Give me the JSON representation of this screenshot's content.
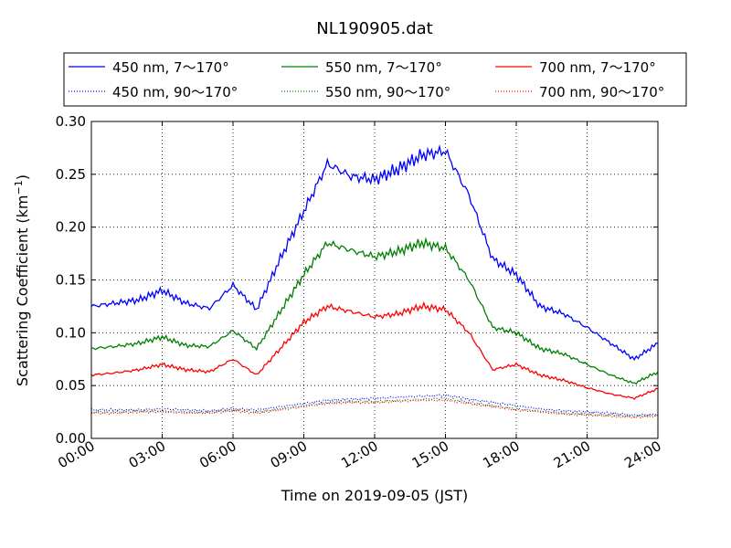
{
  "chart_data": {
    "type": "line",
    "title": "NL190905.dat",
    "xlabel": "Time on 2019-09-05 (JST)",
    "ylabel_main": "Scattering Coefficient (km",
    "ylabel_exp": "−1",
    "ylabel_close": ")",
    "xlim": [
      0,
      24
    ],
    "ylim": [
      0,
      0.3
    ],
    "grid": true,
    "legend_placement": "top, outside plot, 3 columns",
    "x_ticks": [
      0,
      3,
      6,
      9,
      12,
      15,
      18,
      21,
      24
    ],
    "x_tick_labels": [
      "00:00",
      "03:00",
      "06:00",
      "09:00",
      "12:00",
      "15:00",
      "18:00",
      "21:00",
      "24:00"
    ],
    "y_ticks": [
      0,
      0.05,
      0.1,
      0.15,
      0.2,
      0.25,
      0.3
    ],
    "y_tick_labels": [
      "0.00",
      "0.05",
      "0.10",
      "0.15",
      "0.20",
      "0.25",
      "0.30"
    ],
    "x_hours": [
      0,
      1,
      2,
      3,
      4,
      5,
      6,
      7,
      8,
      9,
      10,
      11,
      12,
      13,
      14,
      15,
      16,
      17,
      18,
      19,
      20,
      21,
      22,
      23,
      24
    ],
    "series": [
      {
        "name": "450 nm, 7～170°",
        "color": "#0000ff",
        "style": "solid",
        "values": [
          0.125,
          0.128,
          0.131,
          0.14,
          0.128,
          0.123,
          0.145,
          0.122,
          0.17,
          0.215,
          0.26,
          0.248,
          0.245,
          0.255,
          0.268,
          0.272,
          0.23,
          0.17,
          0.155,
          0.125,
          0.118,
          0.105,
          0.09,
          0.075,
          0.09
        ]
      },
      {
        "name": "450 nm, 90～170°",
        "color": "#0000ff",
        "style": "dotted",
        "values": [
          0.027,
          0.027,
          0.027,
          0.028,
          0.027,
          0.026,
          0.028,
          0.027,
          0.03,
          0.033,
          0.036,
          0.037,
          0.038,
          0.039,
          0.04,
          0.041,
          0.037,
          0.034,
          0.031,
          0.028,
          0.026,
          0.025,
          0.024,
          0.022,
          0.023
        ]
      },
      {
        "name": "550 nm, 7～170°",
        "color": "#008000",
        "style": "solid",
        "values": [
          0.085,
          0.087,
          0.09,
          0.096,
          0.088,
          0.087,
          0.102,
          0.085,
          0.12,
          0.155,
          0.185,
          0.178,
          0.172,
          0.177,
          0.185,
          0.18,
          0.15,
          0.105,
          0.1,
          0.085,
          0.08,
          0.07,
          0.06,
          0.052,
          0.063
        ]
      },
      {
        "name": "550 nm, 90～170°",
        "color": "#008000",
        "style": "dotted",
        "values": [
          0.025,
          0.025,
          0.026,
          0.026,
          0.025,
          0.025,
          0.027,
          0.025,
          0.028,
          0.031,
          0.034,
          0.035,
          0.035,
          0.036,
          0.037,
          0.038,
          0.034,
          0.031,
          0.028,
          0.026,
          0.024,
          0.023,
          0.022,
          0.021,
          0.022
        ]
      },
      {
        "name": "700 nm, 7～170°",
        "color": "#ff0000",
        "style": "solid",
        "values": [
          0.06,
          0.062,
          0.065,
          0.07,
          0.065,
          0.063,
          0.075,
          0.06,
          0.085,
          0.11,
          0.125,
          0.12,
          0.115,
          0.118,
          0.125,
          0.122,
          0.1,
          0.065,
          0.07,
          0.06,
          0.055,
          0.048,
          0.042,
          0.038,
          0.047
        ]
      },
      {
        "name": "700 nm, 90～170°",
        "color": "#ff0000",
        "style": "dotted",
        "values": [
          0.024,
          0.024,
          0.025,
          0.025,
          0.024,
          0.024,
          0.026,
          0.024,
          0.027,
          0.03,
          0.033,
          0.034,
          0.034,
          0.035,
          0.036,
          0.036,
          0.033,
          0.03,
          0.027,
          0.025,
          0.023,
          0.022,
          0.021,
          0.02,
          0.021
        ]
      }
    ]
  }
}
